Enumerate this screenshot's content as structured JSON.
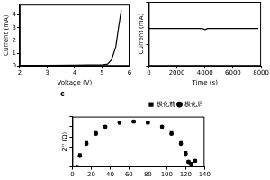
{
  "chart_data": [
    {
      "type": "line",
      "x_label": "Voltage (V)",
      "y_label": "Current (mA)",
      "x": [
        2,
        3,
        4,
        4.5,
        5,
        5.2,
        5.35,
        5.5,
        5.6,
        5.7
      ],
      "values": [
        0.05,
        0.05,
        0.06,
        0.07,
        0.08,
        0.15,
        0.5,
        1.5,
        3.0,
        4.4
      ],
      "color": "#000000",
      "xlim": [
        2,
        6
      ],
      "xticks": [
        2,
        3,
        4,
        5,
        6
      ],
      "ylim": [
        0,
        4.8
      ],
      "yticks": [
        0,
        1,
        2,
        3,
        4
      ],
      "grid": false
    },
    {
      "type": "line",
      "x_label": "Time (s)",
      "y_label": "Current (mA)",
      "x": [
        0,
        1000,
        2000,
        3000,
        3800,
        4000,
        4200,
        5000,
        6000,
        7000,
        7800
      ],
      "values": [
        0.07,
        0.07,
        0.07,
        0.07,
        0.07,
        0.068,
        0.07,
        0.07,
        0.07,
        0.07,
        0.07
      ],
      "color": "#000000",
      "xlim": [
        0,
        8000
      ],
      "xticks": [
        0,
        2000,
        4000,
        6000,
        8000
      ],
      "ylim": [
        0,
        0.12
      ],
      "yticks": [
        0,
        0.04,
        0.08,
        0.12
      ],
      "tick_labels": "x",
      "grid": false
    },
    {
      "type": "scatter",
      "title": "c",
      "y_label": "Z'' (Ω)",
      "x": [
        5,
        8,
        15,
        25,
        35,
        50,
        65,
        80,
        95,
        105,
        115,
        120,
        123,
        126,
        130
      ],
      "series": [
        {
          "name": "极化前",
          "color": "#000000",
          "marker": "square",
          "values": [
            0,
            12,
            24,
            34,
            40,
            44,
            45,
            44,
            40,
            34,
            24,
            14,
            5,
            3,
            6
          ]
        },
        {
          "name": "极化后",
          "color": "#000000",
          "marker": "circle",
          "values": [
            0,
            11,
            23,
            33,
            40,
            44,
            45,
            44,
            40,
            33,
            23,
            13,
            5,
            3,
            6
          ]
        }
      ],
      "xlim": [
        0,
        140
      ],
      "xticks": [
        0,
        20,
        40,
        60,
        80,
        100,
        120,
        140
      ],
      "ylim": [
        0,
        50
      ],
      "yticks": [
        0,
        10,
        20,
        30,
        40,
        50
      ],
      "tick_labels": "x",
      "legend": "upper right",
      "grid": false
    }
  ]
}
